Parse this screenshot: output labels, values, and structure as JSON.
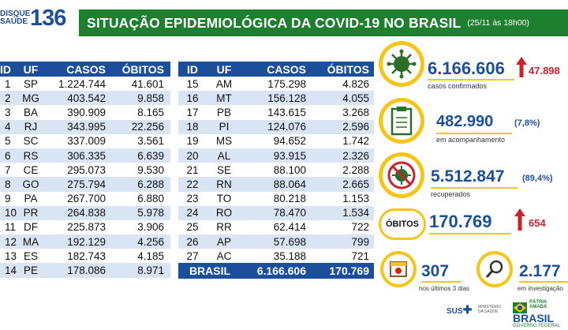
{
  "header": {
    "logo_line1": "DISQUE",
    "logo_line2": "SAÚDE",
    "logo_number": "136",
    "title": "SITUAÇÃO EPIDEMIOLÓGICA DA COVID-19 NO BRASIL",
    "date": "(25/11 às 18h00)"
  },
  "table_headers": {
    "id": "ID",
    "uf": "UF",
    "casos": "CASOS",
    "obitos": "ÓBITOS"
  },
  "table_left": [
    {
      "id": "1",
      "uf": "SP",
      "casos": "1.224.744",
      "obitos": "41.601"
    },
    {
      "id": "2",
      "uf": "MG",
      "casos": "403.542",
      "obitos": "9.858"
    },
    {
      "id": "3",
      "uf": "BA",
      "casos": "390.909",
      "obitos": "8.165"
    },
    {
      "id": "4",
      "uf": "RJ",
      "casos": "343.995",
      "obitos": "22.256"
    },
    {
      "id": "5",
      "uf": "SC",
      "casos": "337.009",
      "obitos": "3.561"
    },
    {
      "id": "6",
      "uf": "RS",
      "casos": "306.335",
      "obitos": "6.639"
    },
    {
      "id": "7",
      "uf": "CE",
      "casos": "295.073",
      "obitos": "9.530"
    },
    {
      "id": "8",
      "uf": "GO",
      "casos": "275.794",
      "obitos": "6.288"
    },
    {
      "id": "9",
      "uf": "PA",
      "casos": "267.700",
      "obitos": "6.880"
    },
    {
      "id": "10",
      "uf": "PR",
      "casos": "264.838",
      "obitos": "5.978"
    },
    {
      "id": "11",
      "uf": "DF",
      "casos": "225.873",
      "obitos": "3.906"
    },
    {
      "id": "12",
      "uf": "MA",
      "casos": "192.129",
      "obitos": "4.256"
    },
    {
      "id": "13",
      "uf": "ES",
      "casos": "182.743",
      "obitos": "4.185"
    },
    {
      "id": "14",
      "uf": "PE",
      "casos": "178.086",
      "obitos": "8.971"
    }
  ],
  "table_right": [
    {
      "id": "15",
      "uf": "AM",
      "casos": "175.298",
      "obitos": "4.826"
    },
    {
      "id": "16",
      "uf": "MT",
      "casos": "156.128",
      "obitos": "4.055"
    },
    {
      "id": "17",
      "uf": "PB",
      "casos": "143.615",
      "obitos": "3.268"
    },
    {
      "id": "18",
      "uf": "PI",
      "casos": "124.076",
      "obitos": "2.596"
    },
    {
      "id": "19",
      "uf": "MS",
      "casos": "94.652",
      "obitos": "1.742"
    },
    {
      "id": "20",
      "uf": "AL",
      "casos": "93.915",
      "obitos": "2.326"
    },
    {
      "id": "21",
      "uf": "SE",
      "casos": "88.100",
      "obitos": "2.288"
    },
    {
      "id": "22",
      "uf": "RN",
      "casos": "88.064",
      "obitos": "2.665"
    },
    {
      "id": "23",
      "uf": "TO",
      "casos": "80.218",
      "obitos": "1.153"
    },
    {
      "id": "24",
      "uf": "RO",
      "casos": "78.470",
      "obitos": "1.534"
    },
    {
      "id": "25",
      "uf": "RR",
      "casos": "62.414",
      "obitos": "722"
    },
    {
      "id": "26",
      "uf": "AP",
      "casos": "57.698",
      "obitos": "799"
    },
    {
      "id": "27",
      "uf": "AC",
      "casos": "35.188",
      "obitos": "721"
    }
  ],
  "total": {
    "label": "BRASIL",
    "casos": "6.166.606",
    "obitos": "170.769"
  },
  "stats": {
    "confirmados": {
      "value": "6.166.606",
      "delta": "47.898",
      "label": "casos confirmados",
      "icon": "virus-icon"
    },
    "acompanhamento": {
      "value": "482.990",
      "pct": "(7,8%)",
      "label": "em acompanhamento",
      "icon": "clipboard-icon"
    },
    "recuperados": {
      "value": "5.512.847",
      "pct": "(89,4%)",
      "label": "recuperados",
      "icon": "no-virus-icon"
    },
    "obitos": {
      "badge": "ÓBITOS",
      "value": "170.769",
      "delta": "654"
    },
    "ultimos": {
      "value": "307",
      "label": "nos últimos 3 dias",
      "icon": "calendar-icon"
    },
    "investigacao": {
      "value": "2.177",
      "label": "em investigação",
      "icon": "magnifier-icon"
    }
  },
  "footer": {
    "sus": "SUS",
    "ministerio": "MINISTÉRIO DA SAÚDE",
    "patria": "PÁTRIA AMADA",
    "brasil": "BRASIL",
    "governo": "GOVERNO FEDERAL"
  },
  "colors": {
    "blue": "#1b4f9c",
    "green": "#1e7f2f",
    "yellow": "#f5c518",
    "red": "#d0202a",
    "stripe": "#d9e4f5"
  }
}
